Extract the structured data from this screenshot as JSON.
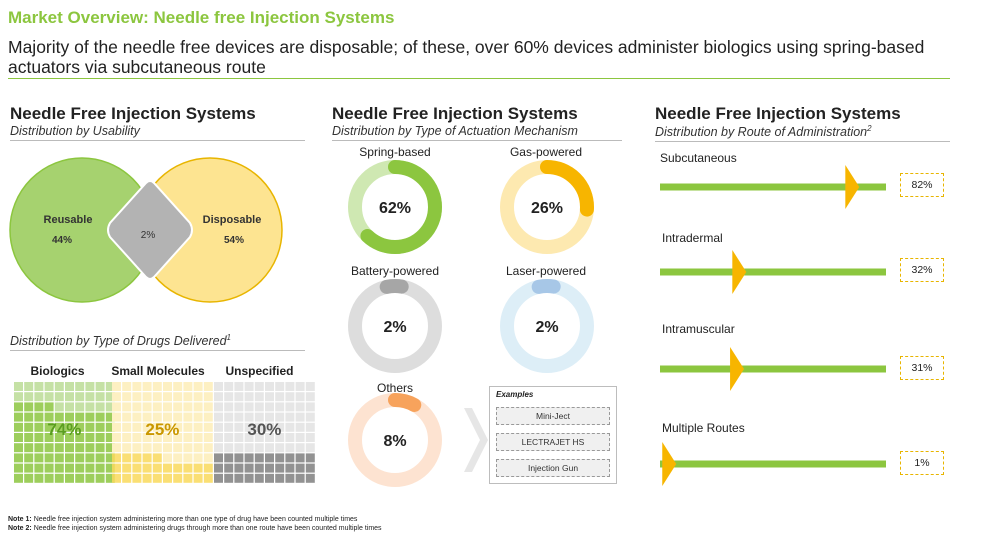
{
  "header": {
    "title": "Market Overview: Needle free Injection Systems",
    "subtitle": "Majority of the needle free devices are disposable; of these, over 60% devices administer biologics using spring-based actuators via subcutaneous route"
  },
  "usability": {
    "title": "Needle Free Injection Systems",
    "subtitle": "Distribution by Usability",
    "colors": {
      "reusable": "#a6d26f",
      "disposable": "#fde491",
      "overlap": "#b3b3b3"
    }
  },
  "drugs": {
    "subtitle": "Distribution by Type of Drugs Delivered",
    "note_ref": "1",
    "colors": {
      "biologics": "#8cc63f",
      "small": "#f9d95c",
      "unspecified": "#7f7f7f"
    }
  },
  "actuation": {
    "title": "Needle Free Injection Systems",
    "subtitle": "Distribution by Type of Actuation Mechanism"
  },
  "route": {
    "title": "Needle Free Injection Systems",
    "subtitle": "Distribution by Route of Administration",
    "note_ref": "2",
    "colors": {
      "bar": "#8cc63f",
      "marker": "#f7b500"
    }
  },
  "examples": {
    "heading": "Examples",
    "items": [
      "Mini-Ject",
      "LECTRAJET HS",
      "Injection Gun"
    ]
  },
  "chart_data": [
    {
      "type": "venn",
      "sets": [
        {
          "label": "Reusable",
          "value_label": "44%",
          "value": 44
        },
        {
          "label": "Disposable",
          "value_label": "54%",
          "value": 54
        }
      ],
      "overlap": {
        "value_label": "2%",
        "value": 2
      }
    },
    {
      "type": "waffle",
      "grid": [
        10,
        10
      ],
      "series": [
        {
          "name": "Biologics",
          "value": 74,
          "label": "74%",
          "light": "#c5e1a5",
          "dark": "#8cc63f",
          "text_color": "#5a9e1f"
        },
        {
          "name": "Small Molecules",
          "value": 25,
          "label": "25%",
          "light": "#fdf0c2",
          "dark": "#f9d95c",
          "text_color": "#c99700"
        },
        {
          "name": "Unspecified",
          "value": 30,
          "label": "30%",
          "light": "#e6e6e6",
          "dark": "#7f7f7f",
          "text_color": "#555555"
        }
      ]
    },
    {
      "type": "donut",
      "series": [
        {
          "name": "Spring-based",
          "value": 62,
          "label": "62%",
          "track": "#cfe8b2",
          "fill": "#8cc63f"
        },
        {
          "name": "Gas-powered",
          "value": 26,
          "label": "26%",
          "track": "#fde9b0",
          "fill": "#f7b500"
        },
        {
          "name": "Battery-powered",
          "value": 2,
          "label": "2%",
          "track": "#dddddd",
          "fill": "#a6a6a6"
        },
        {
          "name": "Laser-powered",
          "value": 2,
          "label": "2%",
          "track": "#ddeef7",
          "fill": "#a7c7e7"
        },
        {
          "name": "Others",
          "value": 8,
          "label": "8%",
          "track": "#fde3d1",
          "fill": "#f7a35c"
        }
      ]
    },
    {
      "type": "bar",
      "categories": [
        "Subcutaneous",
        "Intradermal",
        "Intramuscular",
        "Multiple Routes"
      ],
      "values": [
        82,
        32,
        31,
        1
      ],
      "labels": [
        "82%",
        "32%",
        "31%",
        "1%"
      ],
      "xlim": [
        0,
        100
      ]
    }
  ],
  "notes": [
    {
      "label": "Note 1:",
      "text": "Needle free injection system administering more than one type of drug have been counted multiple times"
    },
    {
      "label": "Note 2:",
      "text": "Needle free injection system administering drugs through more than one route have been counted multiple times"
    }
  ]
}
